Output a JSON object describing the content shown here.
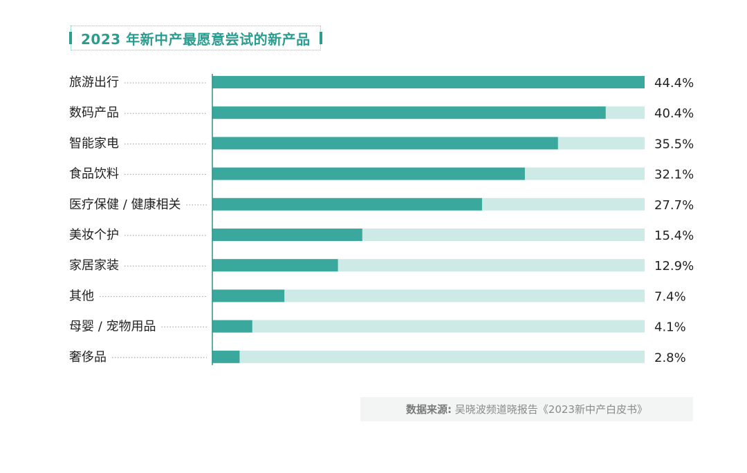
{
  "title": "2023 年新中产最愿意尝试的新产品",
  "source": {
    "label": "数据来源:",
    "text": "吴晓波频道晓报告《2023新中产白皮书》"
  },
  "colors": {
    "bar": "#3aa89d",
    "track": "#cdeae6",
    "title": "#2a9d91",
    "label": "#222222",
    "leader": "#9a9a9a"
  },
  "chart_data": {
    "type": "bar",
    "orientation": "horizontal",
    "categories": [
      "旅游出行",
      "数码产品",
      "智能家电",
      "食品饮料",
      "医疗保健 / 健康相关",
      "美妆个护",
      "家居家装",
      "其他",
      "母婴 / 宠物用品",
      "奢侈品"
    ],
    "values": [
      44.4,
      40.4,
      35.5,
      32.1,
      27.7,
      15.4,
      12.9,
      7.4,
      4.1,
      2.8
    ],
    "value_labels": [
      "44.4%",
      "40.4%",
      "35.5%",
      "32.1%",
      "27.7%",
      "15.4%",
      "12.9%",
      "7.4%",
      "4.1%",
      "2.8%"
    ],
    "xlim": [
      0,
      44.4
    ],
    "grid": false
  }
}
